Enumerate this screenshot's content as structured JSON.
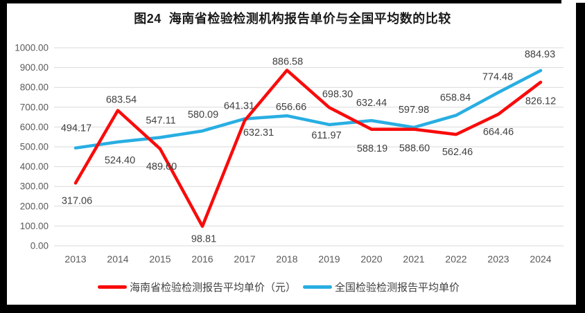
{
  "title": "图24  海南省检验检测机构报告单价与全国平均数的比较",
  "chart_data": {
    "type": "line",
    "x": [
      "2013",
      "2014",
      "2015",
      "2016",
      "2017",
      "2018",
      "2019",
      "2020",
      "2021",
      "2022",
      "2023",
      "2024"
    ],
    "series": [
      {
        "name": "海南省检验检测报告平均单价（元）",
        "color": "#F90B0B",
        "values": [
          317.06,
          683.54,
          489.6,
          98.81,
          632.31,
          886.58,
          698.3,
          588.19,
          588.6,
          562.46,
          664.46,
          826.12
        ],
        "label_offsets": [
          [
            2,
            25
          ],
          [
            5,
            -16
          ],
          [
            2,
            25
          ],
          [
            2,
            18
          ],
          [
            20,
            17
          ],
          [
            1,
            -13
          ],
          [
            12,
            -20
          ],
          [
            1,
            27
          ],
          [
            1,
            27
          ],
          [
            2,
            25
          ],
          [
            0,
            25
          ],
          [
            0,
            27
          ]
        ]
      },
      {
        "name": "全国检验检测报告平均单价",
        "color": "#28AEE2",
        "values": [
          494.17,
          524.4,
          547.11,
          580.09,
          641.31,
          656.66,
          611.97,
          632.44,
          597.98,
          658.84,
          774.48,
          884.93
        ],
        "label_offsets": [
          [
            1,
            -29
          ],
          [
            3,
            26
          ],
          [
            1,
            -25
          ],
          [
            1,
            -24
          ],
          [
            -8,
            -19
          ],
          [
            6,
            -13
          ],
          [
            -4,
            15
          ],
          [
            0,
            -26
          ],
          [
            0,
            -26
          ],
          [
            -1,
            -26
          ],
          [
            -1,
            -23
          ],
          [
            -1,
            -24
          ]
        ]
      }
    ],
    "ylim": [
      0,
      1000
    ],
    "ytick_step": 100,
    "ytick_labels": [
      "0.00",
      "100.00",
      "200.00",
      "300.00",
      "400.00",
      "500.00",
      "600.00",
      "700.00",
      "800.00",
      "900.00",
      "1000.00"
    ],
    "grid": true,
    "legend_position": "bottom",
    "colors": {
      "grid": "#D9D9D9",
      "axis_text": "#595959",
      "label_text": "#404040"
    }
  }
}
